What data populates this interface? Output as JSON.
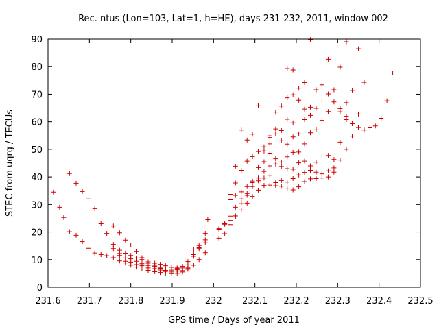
{
  "chart_data": {
    "type": "scatter",
    "title": "Rec. ntus (Lon=103, Lat=1, h=HE), days 231-232, 2011, window 002",
    "xlabel": "GPS time / Days of year 2011",
    "ylabel": "STEC from uqrg / TECUs",
    "xlim": [
      231.6,
      232.5
    ],
    "ylim": [
      0,
      90
    ],
    "xticks": [
      "231.6",
      "231.7",
      "231.8",
      "231.9",
      "232",
      "232.1",
      "232.2",
      "232.3",
      "232.4",
      "232.5"
    ],
    "yticks": [
      "0",
      "10",
      "20",
      "30",
      "40",
      "50",
      "60",
      "70",
      "80",
      "90"
    ],
    "grid": false,
    "marker": "+",
    "color": "#cc0000",
    "series": [
      {
        "name": "STEC",
        "points": [
          [
            231.613,
            34.5
          ],
          [
            231.628,
            29.0
          ],
          [
            231.638,
            25.3
          ],
          [
            231.652,
            41.2
          ],
          [
            231.668,
            37.7
          ],
          [
            231.683,
            34.7
          ],
          [
            231.697,
            32.0
          ],
          [
            231.713,
            28.5
          ],
          [
            231.728,
            23.0
          ],
          [
            231.742,
            19.5
          ],
          [
            231.758,
            22.2
          ],
          [
            231.773,
            19.7
          ],
          [
            231.787,
            17.1
          ],
          [
            231.8,
            15.3
          ],
          [
            231.813,
            13.0
          ],
          [
            231.827,
            10.7
          ],
          [
            231.842,
            8.7
          ],
          [
            231.858,
            7.7
          ],
          [
            231.871,
            7.0
          ],
          [
            231.884,
            6.6
          ],
          [
            231.898,
            6.5
          ],
          [
            231.912,
            6.7
          ],
          [
            231.925,
            7.6
          ],
          [
            231.938,
            9.3
          ],
          [
            231.952,
            11.2
          ],
          [
            231.965,
            14.3
          ],
          [
            231.98,
            19.5
          ],
          [
            231.986,
            24.5
          ],
          [
            231.652,
            20.1
          ],
          [
            231.668,
            18.8
          ],
          [
            231.683,
            16.5
          ],
          [
            231.697,
            14.1
          ],
          [
            231.713,
            12.4
          ],
          [
            231.728,
            11.8
          ],
          [
            231.742,
            11.4
          ],
          [
            231.758,
            10.7
          ],
          [
            231.773,
            9.5
          ],
          [
            231.787,
            8.8
          ],
          [
            231.8,
            8.0
          ],
          [
            231.813,
            7.3
          ],
          [
            231.827,
            6.6
          ],
          [
            231.842,
            6.1
          ],
          [
            231.858,
            5.6
          ],
          [
            231.871,
            5.3
          ],
          [
            231.884,
            5.1
          ],
          [
            231.898,
            4.9
          ],
          [
            231.912,
            5.0
          ],
          [
            231.925,
            5.5
          ],
          [
            231.938,
            6.5
          ],
          [
            231.952,
            8.0
          ],
          [
            231.965,
            10.0
          ],
          [
            231.98,
            12.5
          ],
          [
            231.758,
            15.5
          ],
          [
            231.773,
            13.4
          ],
          [
            231.787,
            12.3
          ],
          [
            231.8,
            11.5
          ],
          [
            231.813,
            10.6
          ],
          [
            231.827,
            10.0
          ],
          [
            231.842,
            9.2
          ],
          [
            231.858,
            8.7
          ],
          [
            231.871,
            8.3
          ],
          [
            231.884,
            7.8
          ],
          [
            231.898,
            7.2
          ],
          [
            231.912,
            7.0
          ],
          [
            231.925,
            7.0
          ],
          [
            231.938,
            8.1
          ],
          [
            231.952,
            11.8
          ],
          [
            231.965,
            15.1
          ],
          [
            231.98,
            17.2
          ],
          [
            231.758,
            14.0
          ],
          [
            231.773,
            12.2
          ],
          [
            231.787,
            10.6
          ],
          [
            231.8,
            10.3
          ],
          [
            231.813,
            9.4
          ],
          [
            231.827,
            8.5
          ],
          [
            231.842,
            7.9
          ],
          [
            231.858,
            7.6
          ],
          [
            231.871,
            6.8
          ],
          [
            231.884,
            6.1
          ],
          [
            231.898,
            6.0
          ],
          [
            231.912,
            6.3
          ],
          [
            231.925,
            6.0
          ],
          [
            231.938,
            7.0
          ],
          [
            231.952,
            13.8
          ],
          [
            231.965,
            14.0
          ],
          [
            231.98,
            16.1
          ],
          [
            231.773,
            11.5
          ],
          [
            231.787,
            9.4
          ],
          [
            231.8,
            9.1
          ],
          [
            231.813,
            8.2
          ],
          [
            231.827,
            7.8
          ],
          [
            231.842,
            7.0
          ],
          [
            231.858,
            6.7
          ],
          [
            231.871,
            6.2
          ],
          [
            231.884,
            5.7
          ],
          [
            231.898,
            5.5
          ],
          [
            231.912,
            5.8
          ],
          [
            231.925,
            5.8
          ],
          [
            231.938,
            6.9
          ],
          [
            232.013,
            17.8
          ],
          [
            232.027,
            19.4
          ],
          [
            232.04,
            22.7
          ],
          [
            232.053,
            25.5
          ],
          [
            232.067,
            28.0
          ],
          [
            232.081,
            30.5
          ],
          [
            232.094,
            32.9
          ],
          [
            232.108,
            35.2
          ],
          [
            232.122,
            36.9
          ],
          [
            232.136,
            37.0
          ],
          [
            232.15,
            36.8
          ],
          [
            232.164,
            36.6
          ],
          [
            232.178,
            35.9
          ],
          [
            232.192,
            35.3
          ],
          [
            232.206,
            36.4
          ],
          [
            232.22,
            38.3
          ],
          [
            232.234,
            39.3
          ],
          [
            232.248,
            39.4
          ],
          [
            232.262,
            39.6
          ],
          [
            232.277,
            40.0
          ],
          [
            232.291,
            41.7
          ],
          [
            232.306,
            46.1
          ],
          [
            232.321,
            50.0
          ],
          [
            232.335,
            54.8
          ],
          [
            232.35,
            57.9
          ],
          [
            232.364,
            57.0
          ],
          [
            232.378,
            57.8
          ],
          [
            232.391,
            58.5
          ],
          [
            232.405,
            61.3
          ],
          [
            232.419,
            67.6
          ],
          [
            232.433,
            77.7
          ],
          [
            232.013,
            21.3
          ],
          [
            232.027,
            23.0
          ],
          [
            232.04,
            25.8
          ],
          [
            232.053,
            29.0
          ],
          [
            232.067,
            32.0
          ],
          [
            232.081,
            34.0
          ],
          [
            232.094,
            36.5
          ],
          [
            232.108,
            38.6
          ],
          [
            232.122,
            39.6
          ],
          [
            232.136,
            40.6
          ],
          [
            232.15,
            37.9
          ],
          [
            232.164,
            38.7
          ],
          [
            232.178,
            38.1
          ],
          [
            232.192,
            39.4
          ],
          [
            232.206,
            40.7
          ],
          [
            232.22,
            41.6
          ],
          [
            232.234,
            42.4
          ],
          [
            232.248,
            41.7
          ],
          [
            232.262,
            41.1
          ],
          [
            232.277,
            42.2
          ],
          [
            232.291,
            43.3
          ],
          [
            232.306,
            52.6
          ],
          [
            232.321,
            60.8
          ],
          [
            232.335,
            59.3
          ],
          [
            232.35,
            62.8
          ],
          [
            232.364,
            74.3
          ],
          [
            232.013,
            21.0
          ],
          [
            232.027,
            22.8
          ],
          [
            232.04,
            24.2
          ],
          [
            232.053,
            25.9
          ],
          [
            232.067,
            30.3
          ],
          [
            232.081,
            33.3
          ],
          [
            232.094,
            37.9
          ],
          [
            232.108,
            43.4
          ],
          [
            232.122,
            45.5
          ],
          [
            232.136,
            48.6
          ],
          [
            232.15,
            44.7
          ],
          [
            232.164,
            43.8
          ],
          [
            232.178,
            43.0
          ],
          [
            232.192,
            42.8
          ],
          [
            232.206,
            45.1
          ],
          [
            232.22,
            45.7
          ],
          [
            232.234,
            44.0
          ],
          [
            232.248,
            45.3
          ],
          [
            232.262,
            47.6
          ],
          [
            232.277,
            47.8
          ],
          [
            232.291,
            46.3
          ],
          [
            232.306,
            63.6
          ],
          [
            232.321,
            62.0
          ],
          [
            232.335,
            71.4
          ],
          [
            232.35,
            86.5
          ],
          [
            232.04,
            31.7
          ],
          [
            232.053,
            33.3
          ],
          [
            232.067,
            34.6
          ],
          [
            232.081,
            36.5
          ],
          [
            232.094,
            38.5
          ],
          [
            232.108,
            39.6
          ],
          [
            232.122,
            42.0
          ],
          [
            232.136,
            44.0
          ],
          [
            232.15,
            46.6
          ],
          [
            232.164,
            45.4
          ],
          [
            232.178,
            47.3
          ],
          [
            232.192,
            48.9
          ],
          [
            232.206,
            49.0
          ],
          [
            232.22,
            52.0
          ],
          [
            232.234,
            56.0
          ],
          [
            232.248,
            57.1
          ],
          [
            232.262,
            60.5
          ],
          [
            232.277,
            63.7
          ],
          [
            232.291,
            67.2
          ],
          [
            232.306,
            79.8
          ],
          [
            232.321,
            89.0
          ],
          [
            232.04,
            33.7
          ],
          [
            232.053,
            37.8
          ],
          [
            232.067,
            42.4
          ],
          [
            232.081,
            45.7
          ],
          [
            232.094,
            47.4
          ],
          [
            232.108,
            49.2
          ],
          [
            232.122,
            50.9
          ],
          [
            232.136,
            52.0
          ],
          [
            232.15,
            55.6
          ],
          [
            232.164,
            53.1
          ],
          [
            232.178,
            51.9
          ],
          [
            232.192,
            54.5
          ],
          [
            232.206,
            55.6
          ],
          [
            232.22,
            60.8
          ],
          [
            232.234,
            62.3
          ],
          [
            232.248,
            64.9
          ],
          [
            232.262,
            67.5
          ],
          [
            232.277,
            70.1
          ],
          [
            232.291,
            71.6
          ],
          [
            232.306,
            64.8
          ],
          [
            232.321,
            66.9
          ],
          [
            232.053,
            43.9
          ],
          [
            232.067,
            57.0
          ],
          [
            232.081,
            53.4
          ],
          [
            232.094,
            55.5
          ],
          [
            232.108,
            65.8
          ],
          [
            232.122,
            49.4
          ],
          [
            232.136,
            54.3
          ],
          [
            232.15,
            63.5
          ],
          [
            232.164,
            65.7
          ],
          [
            232.178,
            68.7
          ],
          [
            232.192,
            69.8
          ],
          [
            232.206,
            72.2
          ],
          [
            232.22,
            64.6
          ],
          [
            232.234,
            65.3
          ],
          [
            232.248,
            71.6
          ],
          [
            232.262,
            73.4
          ],
          [
            232.277,
            82.7
          ],
          [
            232.136,
            54.9
          ],
          [
            232.15,
            57.4
          ],
          [
            232.164,
            56.8
          ],
          [
            232.178,
            60.9
          ],
          [
            232.192,
            59.6
          ],
          [
            232.206,
            67.8
          ],
          [
            232.22,
            74.2
          ],
          [
            232.234,
            89.8
          ],
          [
            232.178,
            79.3
          ],
          [
            232.192,
            78.8
          ]
        ]
      }
    ]
  }
}
